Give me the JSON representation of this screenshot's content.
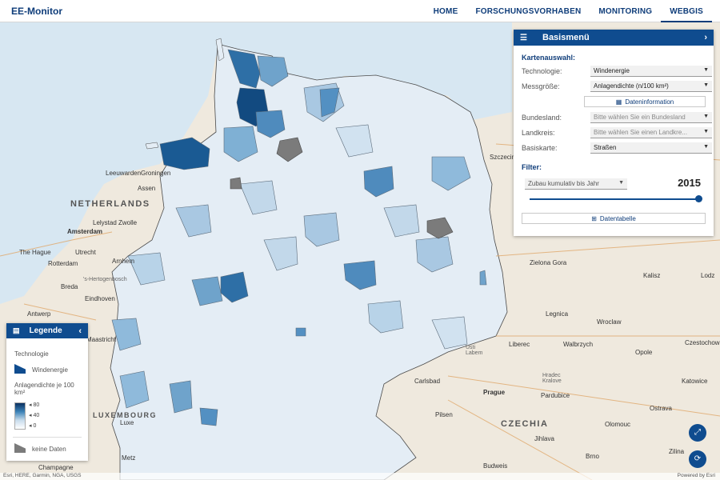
{
  "app": {
    "title": "EE-Monitor"
  },
  "nav": {
    "items": [
      "HOME",
      "FORSCHUNGSVORHABEN",
      "MONITORING",
      "WEBGIS"
    ],
    "active": "WEBGIS"
  },
  "map": {
    "labels": {
      "netherlands": "NETHERLANDS",
      "czechia": "CZECHIA",
      "luxembourg": "LUXEMBOURG",
      "amsterdam": "Amsterdam",
      "the_hague": "The Hague",
      "rotterdam": "Rotterdam",
      "utrecht": "Utrecht",
      "arnhem": "Arnhem",
      "breda": "Breda",
      "eindhoven": "Eindhoven",
      "hertogenbosch": "'s-Hertogenbosch",
      "antwerp": "Antwerp",
      "maastricht": "Maastricht",
      "lelystad": "Lelystad",
      "zwolle": "Zwolle",
      "leeuwarden": "Leeuwarden",
      "groningen": "Groningen",
      "assen": "Assen",
      "prague": "Prague",
      "pilsen": "Pilsen",
      "carlsbad": "Carlsbad",
      "usti": "Usti\nLabem",
      "liberec": "Liberec",
      "hradec": "Hradec\nKralove",
      "pardubice": "Pardubice",
      "jihlava": "Jihlava",
      "budweis": "Budweis",
      "brno": "Brno",
      "olomouc": "Olomouc",
      "ostrava": "Ostrava",
      "opole": "Opole",
      "walbrzych": "Walbrzych",
      "wroclaw": "Wroclaw",
      "legnica": "Legnica",
      "zielona": "Zielona Gora",
      "szczecin": "Szczecin",
      "kalisz": "Kalisz",
      "lodz": "Lodz",
      "czestochowa": "Czestochowa",
      "katowice": "Katowice",
      "zilina": "Zilina",
      "metz": "Metz",
      "champagne": "Champagne",
      "luxe": "Luxe"
    },
    "attribution": "Esri, HERE, Garmin, NGA, USGS",
    "powered_by": "Powered by Esri"
  },
  "basismenu": {
    "title": "Basismenü",
    "kartenauswahl_title": "Kartenauswahl:",
    "fields": [
      {
        "label": "Technologie:",
        "value": "Windenergie",
        "placeholder": false
      },
      {
        "label": "Messgröße:",
        "value": "Anlagendichte (n/100 km²)",
        "placeholder": false
      },
      {
        "label": "Bundesland:",
        "value": "Bitte wählen Sie ein Bundesland",
        "placeholder": true
      },
      {
        "label": "Landkreis:",
        "value": "Bitte wählen Sie einen Landkre...",
        "placeholder": true
      },
      {
        "label": "Basiskarte:",
        "value": "Straßen",
        "placeholder": false
      }
    ],
    "datainfo_button": "Dateninformation",
    "filter_title": "Filter:",
    "filter_select": "Zubau kumulativ bis Jahr",
    "year": "2015",
    "slider_fraction": 1.0,
    "table_button": "Datentabelle"
  },
  "legend": {
    "title": "Legende",
    "technologie_label": "Technologie",
    "technologie_value": "Windenergie",
    "measure_label": "Anlagendichte je 100 km²",
    "ticks": [
      "80",
      "40",
      "0"
    ],
    "nodata_label": "keine Daten"
  },
  "colors": {
    "brand": "#0f4c8f",
    "nodata": "#7b7b7b",
    "water": "#d7e7f2",
    "land": "#efe9de"
  }
}
